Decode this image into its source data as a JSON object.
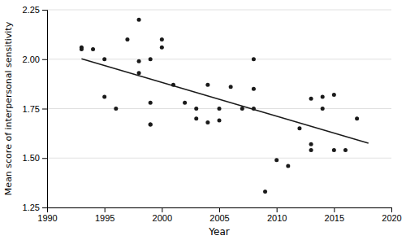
{
  "chart_data": {
    "type": "scatter",
    "xlabel": "Year",
    "ylabel": "Mean score of interpersonal sensitivity",
    "series": [
      {
        "type": "scatter",
        "color": "#1a1a1a",
        "x": [
          1993,
          1993,
          1994,
          1995,
          1995,
          1996,
          1997,
          1998,
          1998,
          1998,
          1999,
          1999,
          1999,
          1999,
          2000,
          2000,
          2001,
          2002,
          2003,
          2003,
          2004,
          2004,
          2005,
          2005,
          2006,
          2007,
          2008,
          2008,
          2008,
          2009,
          2010,
          2011,
          2012,
          2013,
          2013,
          2013,
          2014,
          2014,
          2015,
          2015,
          2016,
          2017
        ],
        "values": [
          2.06,
          2.05,
          2.05,
          2.0,
          1.81,
          1.75,
          2.1,
          2.2,
          1.99,
          1.93,
          2.0,
          1.78,
          1.67,
          1.67,
          2.1,
          2.06,
          1.87,
          1.78,
          1.75,
          1.7,
          1.87,
          1.68,
          1.75,
          1.69,
          1.86,
          1.75,
          2.0,
          1.85,
          1.75,
          1.33,
          1.49,
          1.46,
          1.65,
          1.8,
          1.57,
          1.54,
          1.81,
          1.75,
          1.82,
          1.54,
          1.54,
          1.7
        ]
      },
      {
        "type": "line",
        "color": "#1a1a1a",
        "x": [
          1993,
          2018
        ],
        "values": [
          2.002,
          1.575
        ]
      }
    ],
    "xlim": [
      1990,
      2020
    ],
    "ylim": [
      1.25,
      2.25
    ],
    "xticks": [
      1990,
      1995,
      2000,
      2005,
      2010,
      2015,
      2020
    ],
    "yticks": [
      1.25,
      {
        "value": 1.5,
        "label": "1.50"
      },
      1.75,
      {
        "value": 2,
        "label": "2.00"
      },
      2.25
    ],
    "grid": true
  }
}
